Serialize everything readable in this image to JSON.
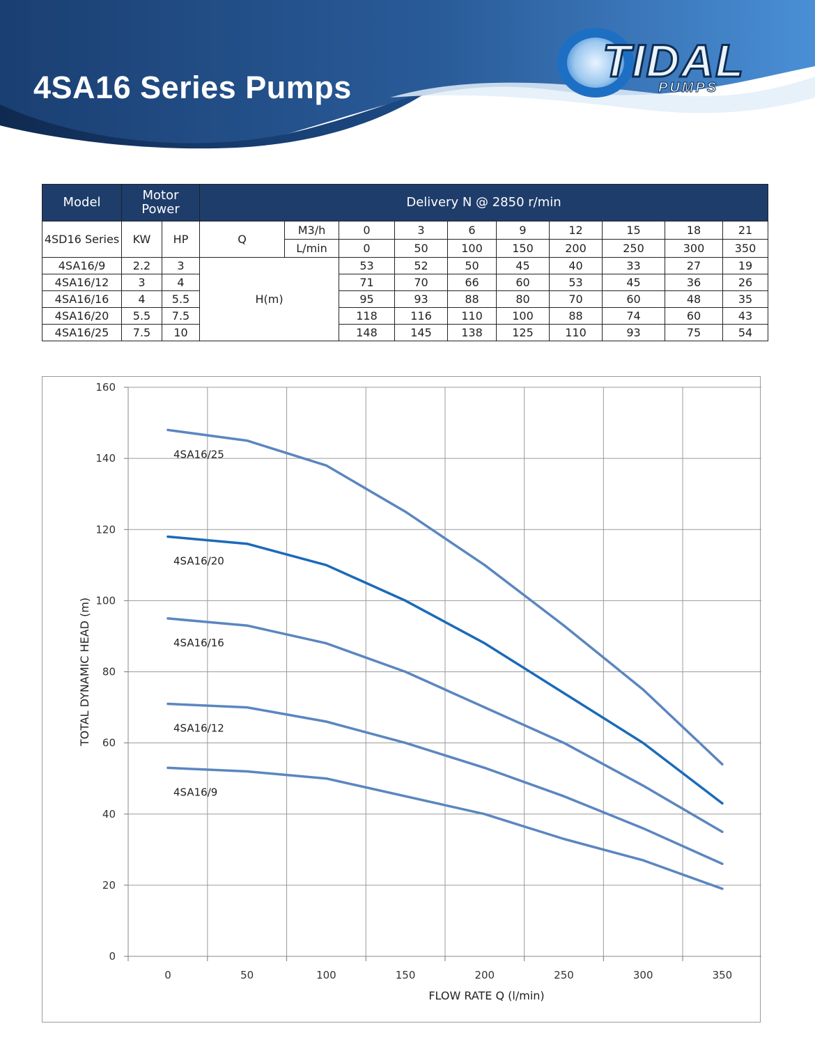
{
  "header": {
    "title": "4SA16 Series Pumps",
    "logo": {
      "word": "TIDAL",
      "sub": "PUMPS"
    },
    "colors": {
      "banner_dark": "#1a3f72",
      "banner_light": "#4a8fd6"
    }
  },
  "spec_table": {
    "head": {
      "model": "Model",
      "motor_power": "Motor Power",
      "delivery": "Delivery N @ 2850 r/min"
    },
    "series_label": "4SD16 Series",
    "kw": "KW",
    "hp": "HP",
    "q": "Q",
    "m3h_label": "M3/h",
    "lmin_label": "L/min",
    "h_label": "H(m)",
    "m3h": [
      "0",
      "3",
      "6",
      "9",
      "12",
      "15",
      "18",
      "21"
    ],
    "lmin": [
      "0",
      "50",
      "100",
      "150",
      "200",
      "250",
      "300",
      "350"
    ],
    "rows": [
      {
        "model": "4SA16/9",
        "kw": "2.2",
        "hp": "3",
        "h": [
          "53",
          "52",
          "50",
          "45",
          "40",
          "33",
          "27",
          "19"
        ]
      },
      {
        "model": "4SA16/12",
        "kw": "3",
        "hp": "4",
        "h": [
          "71",
          "70",
          "66",
          "60",
          "53",
          "45",
          "36",
          "26"
        ]
      },
      {
        "model": "4SA16/16",
        "kw": "4",
        "hp": "5.5",
        "h": [
          "95",
          "93",
          "88",
          "80",
          "70",
          "60",
          "48",
          "35"
        ]
      },
      {
        "model": "4SA16/20",
        "kw": "5.5",
        "hp": "7.5",
        "h": [
          "118",
          "116",
          "110",
          "100",
          "88",
          "74",
          "60",
          "43"
        ]
      },
      {
        "model": "4SA16/25",
        "kw": "7.5",
        "hp": "10",
        "h": [
          "148",
          "145",
          "138",
          "125",
          "110",
          "93",
          "75",
          "54"
        ]
      }
    ]
  },
  "chart_data": {
    "type": "line",
    "title": "",
    "xlabel": "FLOW RATE Q (l/min)",
    "ylabel": "TOTAL DYNAMIC HEAD (m)",
    "x": [
      0,
      50,
      100,
      150,
      200,
      250,
      300,
      350
    ],
    "x_ticks": [
      "0",
      "50",
      "100",
      "150",
      "200",
      "250",
      "300",
      "350"
    ],
    "y_ticks": [
      "0",
      "20",
      "40",
      "60",
      "80",
      "100",
      "120",
      "140",
      "160"
    ],
    "ylim": [
      0,
      160
    ],
    "grid": true,
    "series": [
      {
        "name": "4SA16/25",
        "values": [
          148,
          145,
          138,
          125,
          110,
          93,
          75,
          54
        ],
        "color": "#5b86c0"
      },
      {
        "name": "4SA16/20",
        "values": [
          118,
          116,
          110,
          100,
          88,
          74,
          60,
          43
        ],
        "color": "#1b6ab8"
      },
      {
        "name": "4SA16/16",
        "values": [
          95,
          93,
          88,
          80,
          70,
          60,
          48,
          35
        ],
        "color": "#5b86c0"
      },
      {
        "name": "4SA16/12",
        "values": [
          71,
          70,
          66,
          60,
          53,
          45,
          36,
          26
        ],
        "color": "#5b86c0"
      },
      {
        "name": "4SA16/9",
        "values": [
          53,
          52,
          50,
          45,
          40,
          33,
          27,
          19
        ],
        "color": "#5b86c0"
      }
    ]
  }
}
